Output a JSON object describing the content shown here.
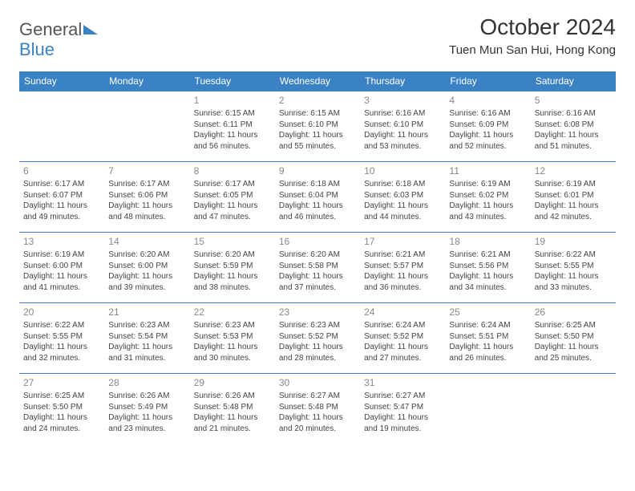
{
  "brand": {
    "part1": "General",
    "part2": "Blue"
  },
  "title": "October 2024",
  "location": "Tuen Mun San Hui, Hong Kong",
  "colors": {
    "primary": "#3b82c4",
    "text": "#333333",
    "muted": "#888888",
    "background": "#ffffff"
  },
  "weekdays": [
    "Sunday",
    "Monday",
    "Tuesday",
    "Wednesday",
    "Thursday",
    "Friday",
    "Saturday"
  ],
  "startOffset": 2,
  "days": [
    {
      "n": 1,
      "sunrise": "6:15 AM",
      "sunset": "6:11 PM",
      "daylight": "11 hours and 56 minutes."
    },
    {
      "n": 2,
      "sunrise": "6:15 AM",
      "sunset": "6:10 PM",
      "daylight": "11 hours and 55 minutes."
    },
    {
      "n": 3,
      "sunrise": "6:16 AM",
      "sunset": "6:10 PM",
      "daylight": "11 hours and 53 minutes."
    },
    {
      "n": 4,
      "sunrise": "6:16 AM",
      "sunset": "6:09 PM",
      "daylight": "11 hours and 52 minutes."
    },
    {
      "n": 5,
      "sunrise": "6:16 AM",
      "sunset": "6:08 PM",
      "daylight": "11 hours and 51 minutes."
    },
    {
      "n": 6,
      "sunrise": "6:17 AM",
      "sunset": "6:07 PM",
      "daylight": "11 hours and 49 minutes."
    },
    {
      "n": 7,
      "sunrise": "6:17 AM",
      "sunset": "6:06 PM",
      "daylight": "11 hours and 48 minutes."
    },
    {
      "n": 8,
      "sunrise": "6:17 AM",
      "sunset": "6:05 PM",
      "daylight": "11 hours and 47 minutes."
    },
    {
      "n": 9,
      "sunrise": "6:18 AM",
      "sunset": "6:04 PM",
      "daylight": "11 hours and 46 minutes."
    },
    {
      "n": 10,
      "sunrise": "6:18 AM",
      "sunset": "6:03 PM",
      "daylight": "11 hours and 44 minutes."
    },
    {
      "n": 11,
      "sunrise": "6:19 AM",
      "sunset": "6:02 PM",
      "daylight": "11 hours and 43 minutes."
    },
    {
      "n": 12,
      "sunrise": "6:19 AM",
      "sunset": "6:01 PM",
      "daylight": "11 hours and 42 minutes."
    },
    {
      "n": 13,
      "sunrise": "6:19 AM",
      "sunset": "6:00 PM",
      "daylight": "11 hours and 41 minutes."
    },
    {
      "n": 14,
      "sunrise": "6:20 AM",
      "sunset": "6:00 PM",
      "daylight": "11 hours and 39 minutes."
    },
    {
      "n": 15,
      "sunrise": "6:20 AM",
      "sunset": "5:59 PM",
      "daylight": "11 hours and 38 minutes."
    },
    {
      "n": 16,
      "sunrise": "6:20 AM",
      "sunset": "5:58 PM",
      "daylight": "11 hours and 37 minutes."
    },
    {
      "n": 17,
      "sunrise": "6:21 AM",
      "sunset": "5:57 PM",
      "daylight": "11 hours and 36 minutes."
    },
    {
      "n": 18,
      "sunrise": "6:21 AM",
      "sunset": "5:56 PM",
      "daylight": "11 hours and 34 minutes."
    },
    {
      "n": 19,
      "sunrise": "6:22 AM",
      "sunset": "5:55 PM",
      "daylight": "11 hours and 33 minutes."
    },
    {
      "n": 20,
      "sunrise": "6:22 AM",
      "sunset": "5:55 PM",
      "daylight": "11 hours and 32 minutes."
    },
    {
      "n": 21,
      "sunrise": "6:23 AM",
      "sunset": "5:54 PM",
      "daylight": "11 hours and 31 minutes."
    },
    {
      "n": 22,
      "sunrise": "6:23 AM",
      "sunset": "5:53 PM",
      "daylight": "11 hours and 30 minutes."
    },
    {
      "n": 23,
      "sunrise": "6:23 AM",
      "sunset": "5:52 PM",
      "daylight": "11 hours and 28 minutes."
    },
    {
      "n": 24,
      "sunrise": "6:24 AM",
      "sunset": "5:52 PM",
      "daylight": "11 hours and 27 minutes."
    },
    {
      "n": 25,
      "sunrise": "6:24 AM",
      "sunset": "5:51 PM",
      "daylight": "11 hours and 26 minutes."
    },
    {
      "n": 26,
      "sunrise": "6:25 AM",
      "sunset": "5:50 PM",
      "daylight": "11 hours and 25 minutes."
    },
    {
      "n": 27,
      "sunrise": "6:25 AM",
      "sunset": "5:50 PM",
      "daylight": "11 hours and 24 minutes."
    },
    {
      "n": 28,
      "sunrise": "6:26 AM",
      "sunset": "5:49 PM",
      "daylight": "11 hours and 23 minutes."
    },
    {
      "n": 29,
      "sunrise": "6:26 AM",
      "sunset": "5:48 PM",
      "daylight": "11 hours and 21 minutes."
    },
    {
      "n": 30,
      "sunrise": "6:27 AM",
      "sunset": "5:48 PM",
      "daylight": "11 hours and 20 minutes."
    },
    {
      "n": 31,
      "sunrise": "6:27 AM",
      "sunset": "5:47 PM",
      "daylight": "11 hours and 19 minutes."
    }
  ],
  "labels": {
    "sunrise": "Sunrise:",
    "sunset": "Sunset:",
    "daylight": "Daylight:"
  }
}
